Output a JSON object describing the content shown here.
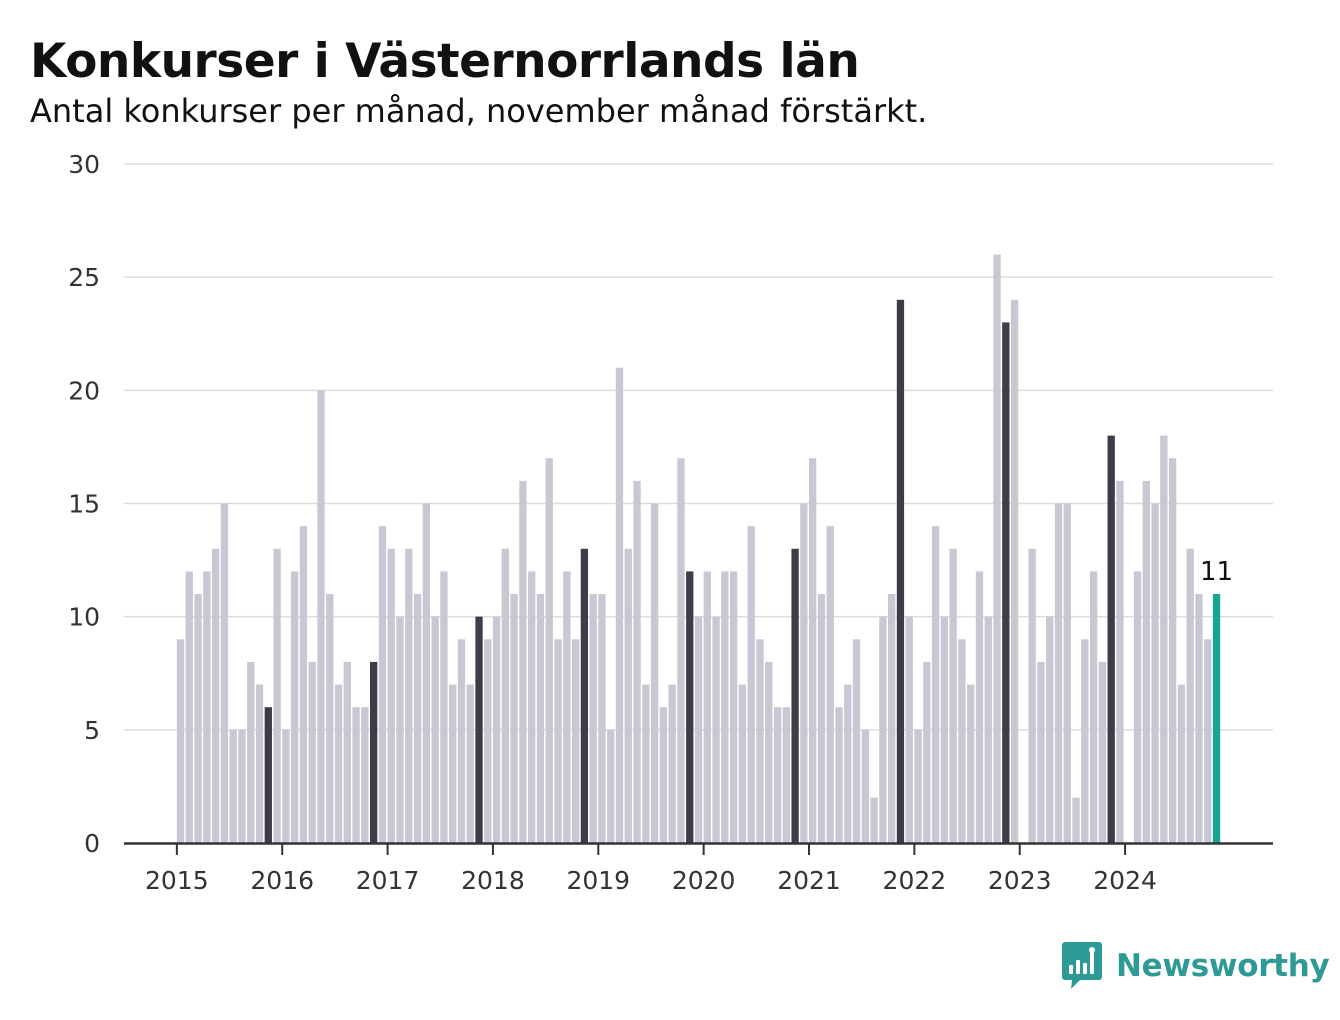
{
  "chart_data": {
    "type": "bar",
    "title": "Konkurser i Västernorrlands län",
    "subtitle": "Antal konkurser per månad, november månad förstärkt.",
    "xlabel": "",
    "ylabel": "",
    "ylim": [
      0,
      30
    ],
    "yticks": [
      "0",
      "5",
      "10",
      "15",
      "20",
      "25",
      "30"
    ],
    "xtick_labels": [
      "2015",
      "2016",
      "2017",
      "2018",
      "2019",
      "2020",
      "2021",
      "2022",
      "2023",
      "2024"
    ],
    "start": "2015-01",
    "highlight_month": "november",
    "grid": true,
    "colors": {
      "normal": "#c8c7d3",
      "highlight": "#3d3c48",
      "latest": "#19a391",
      "grid": "#dcdcdc",
      "axis": "#333333",
      "text": "#333333"
    },
    "values": [
      9,
      12,
      11,
      12,
      13,
      15,
      5,
      5,
      8,
      7,
      6,
      13,
      5,
      12,
      14,
      8,
      20,
      11,
      7,
      8,
      6,
      6,
      8,
      14,
      13,
      10,
      13,
      11,
      15,
      10,
      12,
      7,
      9,
      7,
      10,
      9,
      10,
      13,
      11,
      16,
      12,
      11,
      17,
      9,
      12,
      9,
      13,
      11,
      11,
      5,
      21,
      13,
      16,
      7,
      15,
      6,
      7,
      17,
      12,
      10,
      12,
      10,
      12,
      12,
      7,
      14,
      9,
      8,
      6,
      6,
      13,
      15,
      17,
      11,
      14,
      6,
      7,
      9,
      5,
      2,
      10,
      11,
      24,
      10,
      5,
      8,
      14,
      10,
      13,
      9,
      7,
      12,
      10,
      26,
      23,
      24,
      0,
      13,
      8,
      10,
      15,
      15,
      2,
      9,
      12,
      8,
      18,
      16,
      0,
      12,
      16,
      15,
      18,
      17,
      7,
      13,
      11,
      9,
      11
    ],
    "latest_label": "11"
  },
  "brand": {
    "name": "Newsworthy",
    "icon": "bar-chart-speech-bubble-icon",
    "color": "#2e9a96"
  }
}
